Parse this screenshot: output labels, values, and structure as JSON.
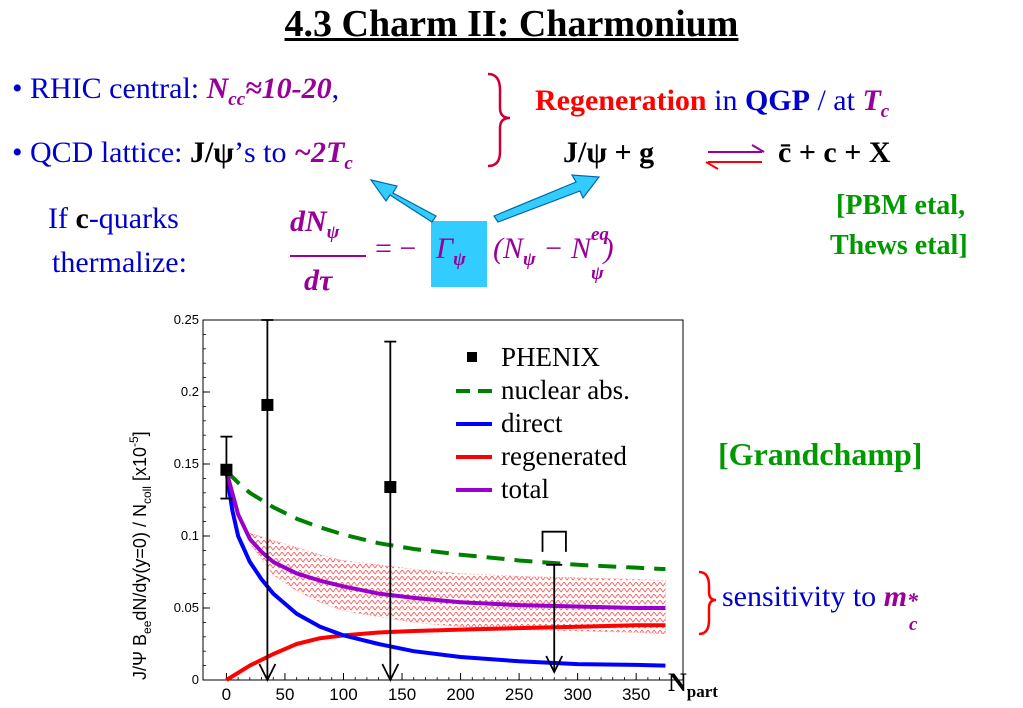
{
  "slide": {
    "title": "4.3 Charm II: Charmonium",
    "bullet1_prefix": "• RHIC central: ",
    "bullet1_value": "N",
    "bullet1_sub": "cc",
    "bullet1_rest": "≈10-20",
    "bullet1_comma": ",",
    "bullet2_prefix": "• QCD lattice: ",
    "bullet2_bold": "J/ψ",
    "bullet2_mid": "’s to ",
    "bullet2_value": "~2T",
    "bullet2_sub": "c",
    "regen_word": "Regeneration",
    "regen_in": " in ",
    "regen_qgp": "QGP",
    "regen_at": " / at ",
    "regen_t": "T",
    "regen_tsub": "c",
    "reaction_left": "J/ψ + g",
    "reaction_right": "c̄ + c + X",
    "ref1_line1": "[PBM etal,",
    "ref1_line2": "Thews etal]",
    "if_line1_a": "If ",
    "if_line1_b": "c",
    "if_line1_c": "-quarks",
    "if_line2": "thermalize:",
    "eq_num": "dN",
    "eq_num_sub": "ψ",
    "eq_den": "dτ",
    "eq_eq": "= −",
    "eq_gamma": "Γ",
    "eq_gamma_sub": "ψ",
    "eq_paren": "(N",
    "eq_paren_sub": "ψ",
    "eq_minus": " − N",
    "eq_sup": "eq",
    "eq_sub2": "ψ",
    "eq_close": ")",
    "ref2": "[Grandchamp]",
    "sens_text": "sensitivity to ",
    "sens_m": "m",
    "sens_sup": "*",
    "sens_sub": "c",
    "npart_n": "N",
    "npart_sub": "part"
  },
  "chart_data": {
    "type": "line",
    "ylabel": "J/Ψ B",
    "ylabel_sub1": "ee",
    "ylabel_mid": "dN/dy(y=0) / N",
    "ylabel_sub2": "coll",
    "ylabel_unit": " [x10",
    "ylabel_exp": "-5",
    "ylabel_close": "]",
    "xlim": [
      -20,
      390
    ],
    "ylim": [
      0,
      0.25
    ],
    "x_ticks": [
      0,
      50,
      100,
      150,
      200,
      250,
      300,
      350
    ],
    "y_ticks": [
      0,
      0.05,
      0.1,
      0.15,
      0.2,
      0.25
    ],
    "y_tick_labels": [
      "0",
      "0.05",
      "0.1",
      "0.15",
      "0.2",
      "0.25"
    ],
    "x_tick_labels": [
      "0",
      "50",
      "100",
      "150",
      "200",
      "250",
      "300",
      "350"
    ],
    "legend_position": "top-right",
    "colors": {
      "phenix": "#000000",
      "nuclear": "#008000",
      "direct": "#0000ff",
      "regenerated": "#ff0000",
      "total": "#9900cc",
      "band": "#ff3333"
    },
    "series": [
      {
        "name": "nuclear abs.",
        "style": "dashed",
        "x": [
          0,
          10,
          20,
          40,
          60,
          80,
          100,
          130,
          160,
          200,
          250,
          300,
          350,
          375
        ],
        "y": [
          0.145,
          0.137,
          0.13,
          0.12,
          0.112,
          0.106,
          0.101,
          0.095,
          0.091,
          0.087,
          0.083,
          0.08,
          0.078,
          0.077
        ]
      },
      {
        "name": "direct",
        "style": "solid",
        "x": [
          0,
          5,
          10,
          20,
          30,
          40,
          60,
          80,
          100,
          130,
          160,
          200,
          250,
          300,
          350,
          375
        ],
        "y": [
          0.145,
          0.118,
          0.1,
          0.082,
          0.07,
          0.06,
          0.046,
          0.037,
          0.031,
          0.025,
          0.02,
          0.016,
          0.013,
          0.011,
          0.0105,
          0.01
        ]
      },
      {
        "name": "regenerated",
        "style": "solid",
        "x": [
          0,
          10,
          20,
          40,
          60,
          80,
          100,
          130,
          160,
          200,
          250,
          300,
          350,
          375
        ],
        "y": [
          0.0,
          0.005,
          0.01,
          0.018,
          0.025,
          0.029,
          0.031,
          0.033,
          0.034,
          0.035,
          0.036,
          0.037,
          0.038,
          0.038
        ]
      },
      {
        "name": "total",
        "style": "solid",
        "x": [
          0,
          5,
          10,
          20,
          30,
          40,
          60,
          80,
          100,
          130,
          160,
          200,
          250,
          300,
          350,
          375
        ],
        "y": [
          0.145,
          0.13,
          0.115,
          0.098,
          0.089,
          0.082,
          0.074,
          0.069,
          0.065,
          0.06,
          0.057,
          0.054,
          0.052,
          0.051,
          0.05,
          0.05
        ]
      }
    ],
    "band": {
      "x": [
        20,
        40,
        60,
        80,
        100,
        130,
        160,
        200,
        250,
        300,
        350,
        375
      ],
      "upper": [
        0.102,
        0.097,
        0.092,
        0.087,
        0.083,
        0.08,
        0.077,
        0.074,
        0.072,
        0.071,
        0.07,
        0.069
      ],
      "lower": [
        0.095,
        0.073,
        0.062,
        0.054,
        0.048,
        0.044,
        0.04,
        0.037,
        0.035,
        0.034,
        0.033,
        0.032
      ]
    },
    "phenix": {
      "name": "PHENIX",
      "points": [
        {
          "x": 0,
          "y": 0.146,
          "yhi": 0.169,
          "ylo": 0.126,
          "arrow": false
        },
        {
          "x": 35,
          "y": 0.191,
          "yhi": 0.25,
          "ylo": 0.0,
          "arrow": true
        },
        {
          "x": 140,
          "y": 0.134,
          "yhi": 0.235,
          "ylo": 0.0,
          "arrow": true
        }
      ],
      "upper_limit": {
        "x": 280,
        "top": 0.08,
        "bracket_x0": 270,
        "bracket_x1": 290,
        "bracket_top": 0.103,
        "bracket_bottom": 0.089
      }
    }
  }
}
